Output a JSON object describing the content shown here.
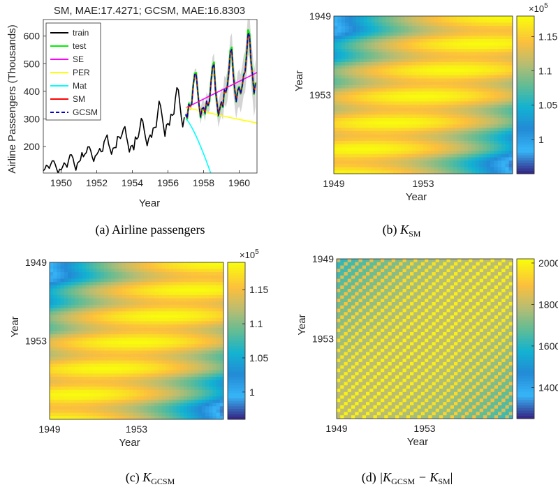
{
  "panels": [
    {
      "caption": "(a) Airline passengers"
    },
    {
      "caption_prefix": "(b)",
      "caption_math": "K",
      "caption_sub": "SM"
    },
    {
      "caption_prefix": "(c)",
      "caption_math": "K",
      "caption_sub": "GCSM"
    },
    {
      "caption_prefix": "(d)",
      "caption_math": "|K",
      "caption_sub": "GCSM",
      "caption_mid": " − K",
      "caption_sub2": "SM",
      "caption_end": "|"
    }
  ],
  "chart_data": [
    {
      "type": "line",
      "title": "SM, MAE:17.4271; GCSM, MAE:16.8303",
      "xlabel": "Year",
      "ylabel": "Airline Passengers (Thousands)",
      "xlim": [
        1949,
        1961
      ],
      "ylim": [
        104,
        660
      ],
      "xticks": [
        "1950",
        "1952",
        "1954",
        "1956",
        "1958",
        "1960"
      ],
      "yticks": [
        "200",
        "300",
        "400",
        "500",
        "600"
      ],
      "legend_position": "top-left",
      "series": [
        {
          "name": "train",
          "color": "#000000",
          "start": 1949.0,
          "values": [
            112,
            118,
            132,
            129,
            121,
            135,
            148,
            148,
            136,
            119,
            104,
            118,
            115,
            126,
            141,
            135,
            125,
            149,
            170,
            170,
            158,
            133,
            114,
            140,
            145,
            150,
            178,
            163,
            172,
            178,
            199,
            199,
            184,
            162,
            146,
            166,
            171,
            180,
            193,
            181,
            183,
            218,
            230,
            242,
            209,
            191,
            172,
            194,
            196,
            196,
            236,
            235,
            229,
            243,
            264,
            272,
            237,
            211,
            180,
            201,
            204,
            188,
            235,
            227,
            234,
            264,
            302,
            293,
            259,
            229,
            203,
            229,
            242,
            233,
            267,
            269,
            270,
            315,
            364,
            347,
            312,
            274,
            237,
            278,
            284,
            277,
            317,
            313,
            318,
            374,
            413,
            405,
            355,
            306,
            271,
            306
          ]
        },
        {
          "name": "test",
          "color": "#00ee00",
          "start": 1957.0,
          "values": [
            315,
            301,
            356,
            348,
            355,
            422,
            465,
            467,
            404,
            347,
            305,
            336,
            340,
            318,
            362,
            348,
            363,
            435,
            491,
            505,
            404,
            359,
            310,
            337,
            360,
            342,
            406,
            396,
            420,
            472,
            548,
            559,
            463,
            407,
            362,
            405,
            417,
            391,
            419,
            461,
            472,
            535,
            622,
            606,
            508,
            461,
            390,
            432
          ]
        },
        {
          "name": "SE",
          "color": "#ff00ff",
          "start": 1957.0,
          "end": 1961.0,
          "values_at_ends": [
            340,
            468
          ]
        },
        {
          "name": "PER",
          "color": "#ffff00",
          "start": 1957.0,
          "end": 1961.0,
          "values_at_ends": [
            340,
            285
          ]
        },
        {
          "name": "Mat",
          "color": "#00ffff",
          "start": 1957.0,
          "end": 1958.4,
          "values_at_ends": [
            300,
            104
          ]
        },
        {
          "name": "SM",
          "color": "#ff0000",
          "start": 1957.0,
          "values": [
            318,
            304,
            352,
            345,
            352,
            418,
            460,
            462,
            402,
            348,
            308,
            338,
            342,
            322,
            365,
            350,
            366,
            432,
            486,
            498,
            405,
            362,
            314,
            340,
            362,
            346,
            404,
            396,
            418,
            468,
            540,
            550,
            460,
            406,
            364,
            402,
            414,
            392,
            420,
            458,
            470,
            530,
            610,
            598,
            505,
            458,
            392,
            430
          ]
        },
        {
          "name": "GCSM",
          "color": "#0000cc",
          "start": 1957.0,
          "values": [
            317,
            303,
            353,
            346,
            353,
            419,
            461,
            463,
            403,
            347,
            307,
            337,
            341,
            321,
            364,
            349,
            365,
            433,
            487,
            499,
            404,
            361,
            313,
            339,
            361,
            345,
            405,
            397,
            419,
            469,
            542,
            552,
            461,
            407,
            363,
            403,
            415,
            391,
            419,
            459,
            471,
            531,
            612,
            600,
            506,
            459,
            391,
            431
          ]
        }
      ]
    },
    {
      "type": "heatmap",
      "xlabel": "Year",
      "ylabel": "Year",
      "xticks": [
        "1949",
        "1953"
      ],
      "yticks": [
        "1949",
        "1953"
      ],
      "colorbar": {
        "ticks": [
          "1",
          "1.05",
          "1.1",
          "1.15"
        ],
        "exponent_base": "×10",
        "exponent_power": "5",
        "range": [
          0.95,
          1.18
        ]
      },
      "period": 8,
      "min": 0.95,
      "max": 1.18
    },
    {
      "type": "heatmap",
      "xlabel": "Year",
      "ylabel": "Year",
      "xticks": [
        "1949",
        "1953"
      ],
      "yticks": [
        "1949",
        "1953"
      ],
      "colorbar": {
        "ticks": [
          "1",
          "1.05",
          "1.1",
          "1.15"
        ],
        "exponent_base": "×10",
        "exponent_power": "5",
        "range": [
          0.96,
          1.19
        ]
      },
      "period": 8,
      "min": 0.96,
      "max": 1.19
    },
    {
      "type": "heatmap",
      "xlabel": "Year",
      "ylabel": "Year",
      "xticks": [
        "1949",
        "1953"
      ],
      "yticks": [
        "1949",
        "1953"
      ],
      "colorbar": {
        "ticks": [
          "1400",
          "1600",
          "1800",
          "2000"
        ],
        "range": [
          1250,
          2020
        ]
      },
      "period": 3,
      "min": 1250,
      "max": 2020
    }
  ]
}
